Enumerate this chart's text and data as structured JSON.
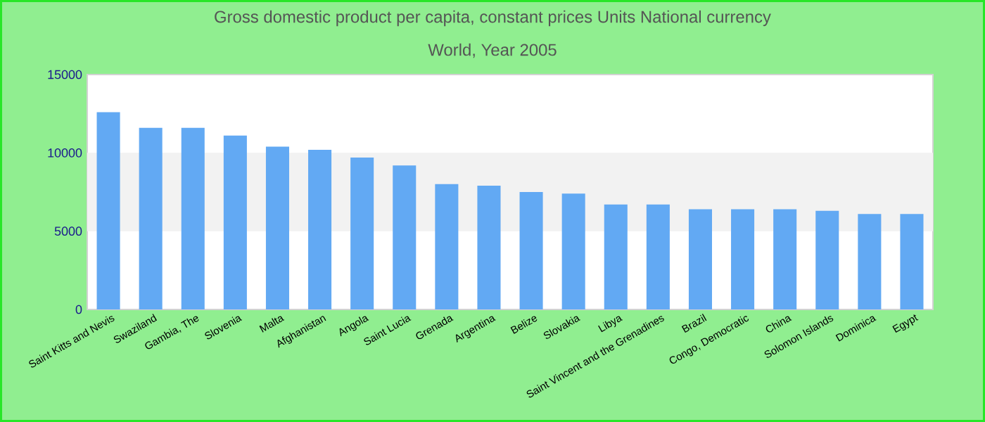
{
  "chart_data": {
    "type": "bar",
    "title": "Gross domestic product per capita, constant prices Units National currency",
    "subtitle": "World, Year 2005",
    "categories": [
      "Saint Kitts and Nevis",
      "Swaziland",
      "Gambia, The",
      "Slovenia",
      "Malta",
      "Afghanistan",
      "Angola",
      "Saint Lucia",
      "Grenada",
      "Argentina",
      "Belize",
      "Slovakia",
      "Libya",
      "Saint Vincent and the Grenadines",
      "Brazil",
      "Congo, Democratic",
      "China",
      "Solomon Islands",
      "Dominica",
      "Egypt"
    ],
    "values": [
      12600,
      11600,
      11600,
      11100,
      10400,
      10200,
      9700,
      9200,
      8000,
      7900,
      7500,
      7400,
      6700,
      6700,
      6400,
      6400,
      6400,
      6300,
      6100,
      6100
    ],
    "color": "#62a9f3",
    "ylim": [
      0,
      15000
    ],
    "yticks": [
      0,
      5000,
      10000,
      15000
    ],
    "bands": [
      {
        "axis": "y",
        "from": 5000,
        "to": 10000,
        "color": "#f2f2f2"
      }
    ]
  }
}
